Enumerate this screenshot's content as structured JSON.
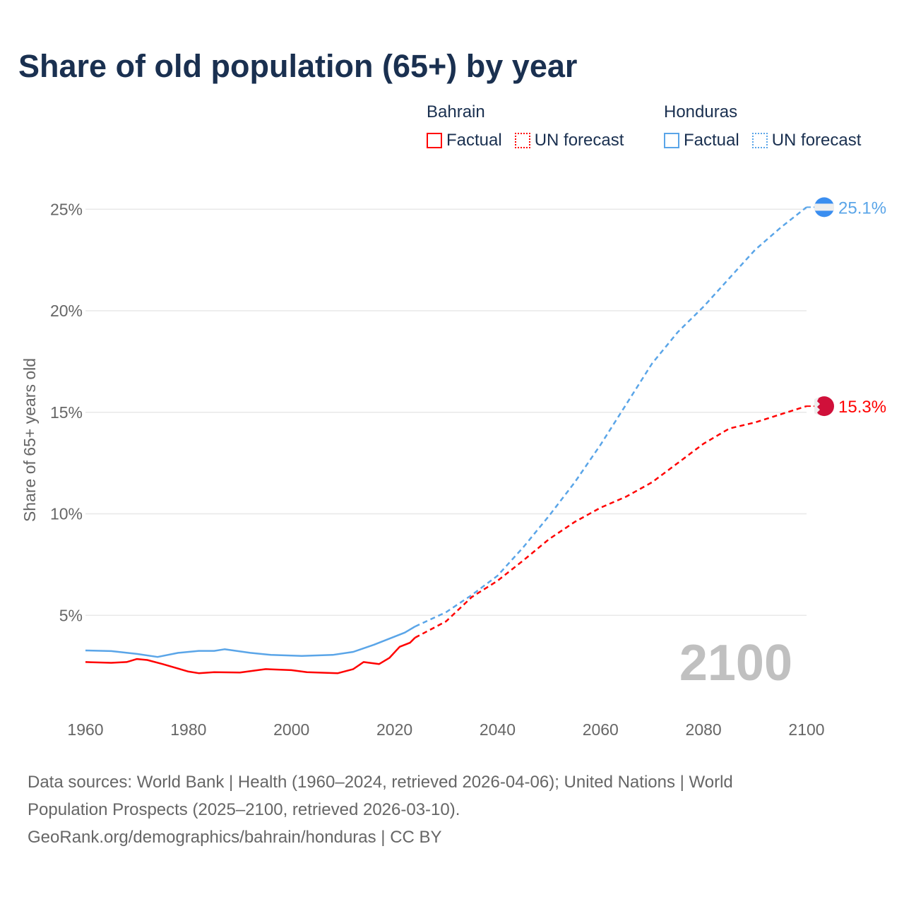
{
  "title": "Share of old population (65+) by year",
  "legend": [
    {
      "country": "Bahrain",
      "factual": "Factual",
      "forecast": "UN forecast",
      "color": "#ff0000"
    },
    {
      "country": "Honduras",
      "factual": "Factual",
      "forecast": "UN forecast",
      "color": "#5aa5e8"
    }
  ],
  "year_label": "2100",
  "footer": {
    "line1": "Data sources: World Bank | Health (1960–2024, retrieved 2026-04-06); United Nations | World",
    "line2": "Population Prospects (2025–2100, retrieved 2026-03-10).",
    "line3": "GeoRank.org/demographics/bahrain/honduras | CC BY"
  },
  "chart_data": {
    "type": "line",
    "title": "Share of old population (65+) by year",
    "xlabel": "",
    "ylabel": "Share of 65+ years old",
    "xlim": [
      1960,
      2100
    ],
    "ylim": [
      0,
      27
    ],
    "x_ticks": [
      "1960",
      "1980",
      "2000",
      "2020",
      "2040",
      "2060",
      "2080",
      "2100"
    ],
    "y_ticks": [
      {
        "v": 5,
        "label": "5%"
      },
      {
        "v": 10,
        "label": "10%"
      },
      {
        "v": 15,
        "label": "15%"
      },
      {
        "v": 20,
        "label": "20%"
      },
      {
        "v": 25,
        "label": "25%"
      }
    ],
    "grid": true,
    "series": [
      {
        "name": "Bahrain",
        "color": "#ff0000",
        "end_label": "15.3%",
        "factual": [
          [
            1960,
            2.7
          ],
          [
            1965,
            2.66
          ],
          [
            1968,
            2.7
          ],
          [
            1970,
            2.85
          ],
          [
            1972,
            2.8
          ],
          [
            1975,
            2.6
          ],
          [
            1980,
            2.23
          ],
          [
            1982,
            2.15
          ],
          [
            1985,
            2.2
          ],
          [
            1990,
            2.18
          ],
          [
            1995,
            2.35
          ],
          [
            2000,
            2.3
          ],
          [
            2003,
            2.2
          ],
          [
            2009,
            2.15
          ],
          [
            2012,
            2.35
          ],
          [
            2014,
            2.7
          ],
          [
            2017,
            2.6
          ],
          [
            2019,
            2.9
          ],
          [
            2021,
            3.45
          ],
          [
            2023,
            3.65
          ],
          [
            2024,
            3.9
          ]
        ],
        "forecast": [
          [
            2024,
            3.9
          ],
          [
            2030,
            4.7
          ],
          [
            2035,
            5.9
          ],
          [
            2040,
            6.7
          ],
          [
            2045,
            7.7
          ],
          [
            2050,
            8.75
          ],
          [
            2055,
            9.6
          ],
          [
            2060,
            10.3
          ],
          [
            2065,
            10.85
          ],
          [
            2070,
            11.55
          ],
          [
            2075,
            12.5
          ],
          [
            2080,
            13.45
          ],
          [
            2085,
            14.2
          ],
          [
            2090,
            14.5
          ],
          [
            2095,
            14.9
          ],
          [
            2100,
            15.3
          ]
        ]
      },
      {
        "name": "Honduras",
        "color": "#5aa5e8",
        "end_label": "25.1%",
        "factual": [
          [
            1960,
            3.27
          ],
          [
            1965,
            3.24
          ],
          [
            1970,
            3.1
          ],
          [
            1974,
            2.95
          ],
          [
            1978,
            3.15
          ],
          [
            1982,
            3.25
          ],
          [
            1985,
            3.25
          ],
          [
            1987,
            3.33
          ],
          [
            1992,
            3.15
          ],
          [
            1996,
            3.05
          ],
          [
            2002,
            3.0
          ],
          [
            2008,
            3.05
          ],
          [
            2012,
            3.2
          ],
          [
            2016,
            3.55
          ],
          [
            2020,
            3.95
          ],
          [
            2022,
            4.15
          ],
          [
            2024,
            4.45
          ]
        ],
        "forecast": [
          [
            2024,
            4.45
          ],
          [
            2030,
            5.15
          ],
          [
            2035,
            6.0
          ],
          [
            2040,
            6.95
          ],
          [
            2045,
            8.35
          ],
          [
            2050,
            9.9
          ],
          [
            2055,
            11.55
          ],
          [
            2060,
            13.4
          ],
          [
            2065,
            15.4
          ],
          [
            2070,
            17.4
          ],
          [
            2075,
            18.95
          ],
          [
            2080,
            20.2
          ],
          [
            2085,
            21.6
          ],
          [
            2090,
            23.0
          ],
          [
            2095,
            24.1
          ],
          [
            2100,
            25.1
          ]
        ]
      }
    ]
  }
}
